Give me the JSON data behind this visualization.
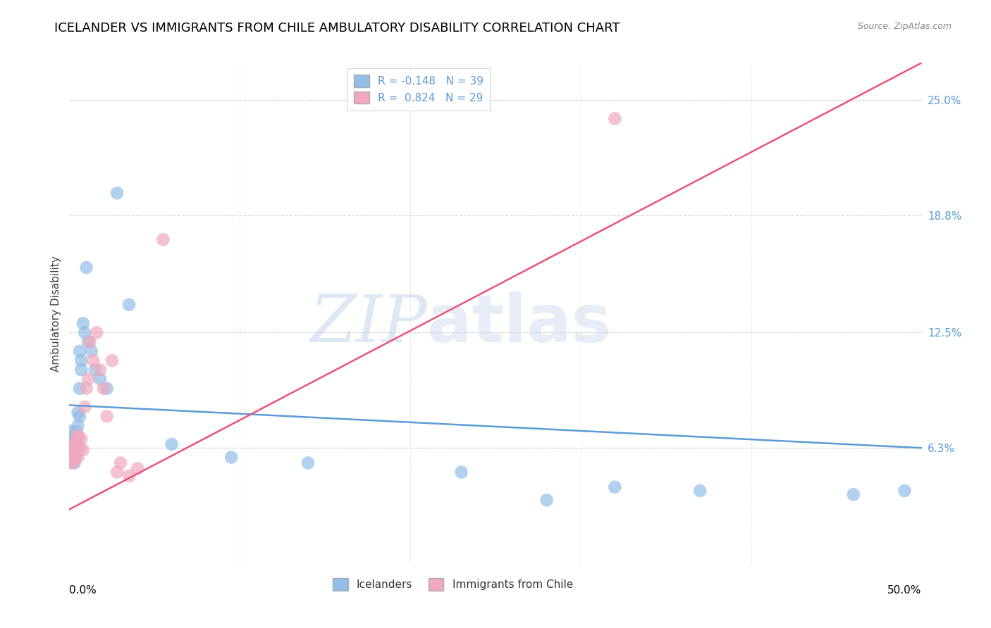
{
  "title": "ICELANDER VS IMMIGRANTS FROM CHILE AMBULATORY DISABILITY CORRELATION CHART",
  "source": "Source: ZipAtlas.com",
  "ylabel": "Ambulatory Disability",
  "ytick_labels": [
    "6.3%",
    "12.5%",
    "18.8%",
    "25.0%"
  ],
  "ytick_values": [
    0.063,
    0.125,
    0.188,
    0.25
  ],
  "xlim": [
    0.0,
    0.5
  ],
  "ylim": [
    0.0,
    0.27
  ],
  "legend_label1": "Icelanders",
  "legend_label2": "Immigrants from Chile",
  "r1": -0.148,
  "n1": 39,
  "r2": 0.824,
  "n2": 29,
  "color_blue": "#92BEE8",
  "color_pink": "#F2A8BE",
  "line_color_blue": "#5B9BD5",
  "line_color_pink": "#E8547A",
  "blue_line_x0": 0.0,
  "blue_line_y0": 0.086,
  "blue_line_x1": 0.5,
  "blue_line_y1": 0.063,
  "pink_line_x0": 0.0,
  "pink_line_y0": 0.03,
  "pink_line_x1": 0.5,
  "pink_line_y1": 0.27,
  "icelanders_x": [
    0.001,
    0.001,
    0.002,
    0.002,
    0.002,
    0.003,
    0.003,
    0.003,
    0.003,
    0.004,
    0.004,
    0.005,
    0.005,
    0.005,
    0.005,
    0.006,
    0.006,
    0.006,
    0.007,
    0.007,
    0.008,
    0.009,
    0.01,
    0.011,
    0.013,
    0.015,
    0.018,
    0.022,
    0.028,
    0.035,
    0.06,
    0.095,
    0.14,
    0.23,
    0.28,
    0.32,
    0.37,
    0.46,
    0.49
  ],
  "icelanders_y": [
    0.065,
    0.072,
    0.06,
    0.068,
    0.058,
    0.063,
    0.057,
    0.055,
    0.068,
    0.072,
    0.06,
    0.082,
    0.075,
    0.068,
    0.062,
    0.115,
    0.095,
    0.08,
    0.11,
    0.105,
    0.13,
    0.125,
    0.16,
    0.12,
    0.115,
    0.105,
    0.1,
    0.095,
    0.2,
    0.14,
    0.065,
    0.058,
    0.055,
    0.05,
    0.035,
    0.042,
    0.04,
    0.038,
    0.04
  ],
  "chile_x": [
    0.001,
    0.001,
    0.002,
    0.002,
    0.003,
    0.003,
    0.004,
    0.004,
    0.005,
    0.005,
    0.006,
    0.007,
    0.008,
    0.009,
    0.01,
    0.011,
    0.012,
    0.014,
    0.016,
    0.018,
    0.02,
    0.022,
    0.025,
    0.028,
    0.03,
    0.035,
    0.04,
    0.055,
    0.32
  ],
  "chile_y": [
    0.058,
    0.055,
    0.062,
    0.055,
    0.065,
    0.058,
    0.068,
    0.062,
    0.058,
    0.07,
    0.063,
    0.068,
    0.062,
    0.085,
    0.095,
    0.1,
    0.12,
    0.11,
    0.125,
    0.105,
    0.095,
    0.08,
    0.11,
    0.05,
    0.055,
    0.048,
    0.052,
    0.175,
    0.24
  ],
  "background_color": "#ffffff",
  "grid_color": "#cccccc",
  "watermark_text": "ZIP",
  "watermark_text2": "atlas",
  "title_fontsize": 13,
  "axis_label_fontsize": 11,
  "tick_fontsize": 11,
  "source_fontsize": 9
}
